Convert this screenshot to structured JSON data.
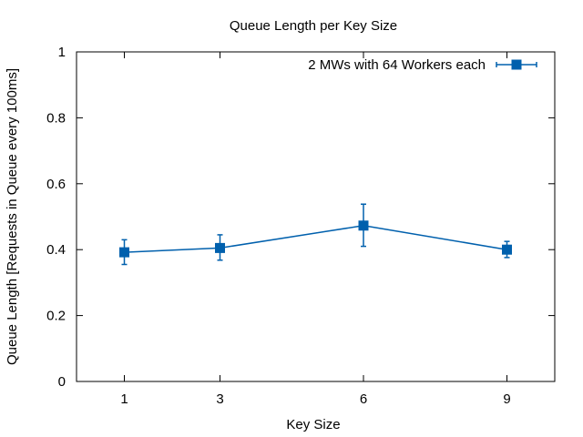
{
  "chart_data": {
    "type": "line",
    "title": "Queue Length per Key Size",
    "xlabel": "Key Size",
    "ylabel": "Queue Length [Requests in Queue every 100ms]",
    "xlim": [
      0,
      10
    ],
    "ylim": [
      0,
      1
    ],
    "x_ticks": [
      1,
      3,
      6,
      9
    ],
    "y_ticks": [
      0,
      0.2,
      0.4,
      0.6,
      0.8,
      1
    ],
    "y_tick_labels": [
      "0",
      "0.2",
      "0.4",
      "0.6",
      "0.8",
      "1"
    ],
    "grid": false,
    "legend_position": "top-right",
    "series": [
      {
        "name": "2 MWs with 64 Workers each",
        "color": "#0060ad",
        "marker": "square",
        "x": [
          1,
          3,
          6,
          9
        ],
        "y": [
          0.392,
          0.405,
          0.473,
          0.4
        ],
        "err_low": [
          0.355,
          0.368,
          0.41,
          0.376
        ],
        "err_high": [
          0.43,
          0.445,
          0.538,
          0.425
        ]
      }
    ]
  }
}
